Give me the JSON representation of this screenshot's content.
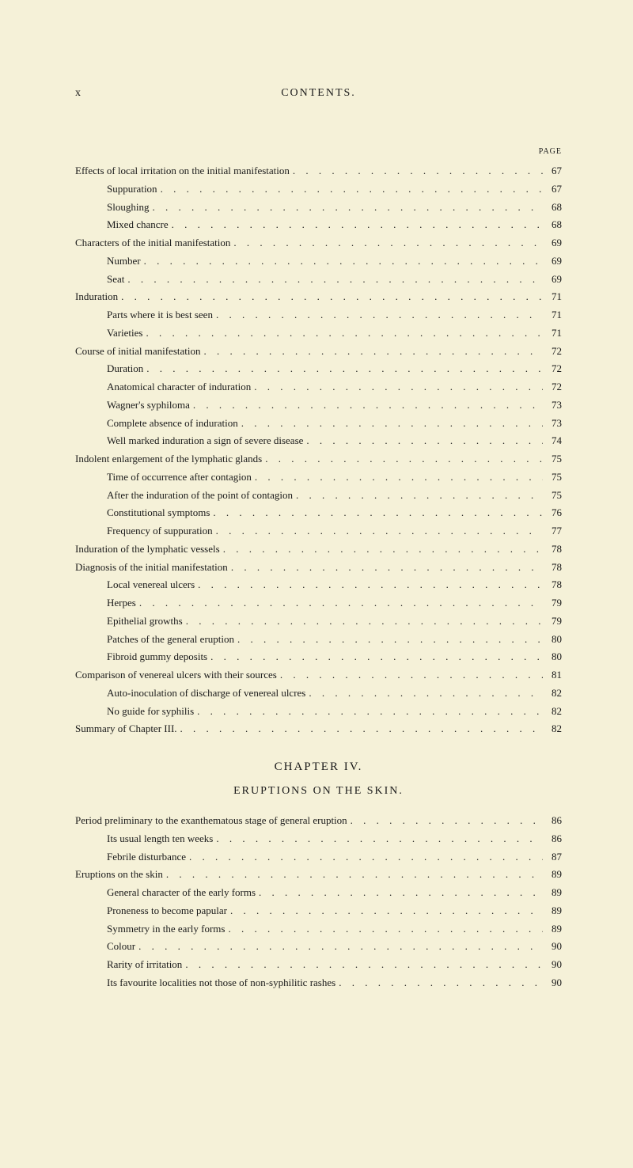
{
  "header": {
    "pageRoman": "x",
    "title": "CONTENTS."
  },
  "pageLabel": "PAGE",
  "entries1": [
    {
      "label": "Effects of local irritation on the initial manifestation",
      "page": "67",
      "indent": 0
    },
    {
      "label": "Suppuration",
      "page": "67",
      "indent": 1
    },
    {
      "label": "Sloughing",
      "page": "68",
      "indent": 1
    },
    {
      "label": "Mixed chancre",
      "page": "68",
      "indent": 1
    },
    {
      "label": "Characters of the initial manifestation",
      "page": "69",
      "indent": 0
    },
    {
      "label": "Number",
      "page": "69",
      "indent": 1
    },
    {
      "label": "Seat",
      "page": "69",
      "indent": 1
    },
    {
      "label": "Induration",
      "page": "71",
      "indent": 0
    },
    {
      "label": "Parts where it is best seen",
      "page": "71",
      "indent": 1
    },
    {
      "label": "Varieties",
      "page": "71",
      "indent": 1
    },
    {
      "label": "Course of initial manifestation",
      "page": "72",
      "indent": 0
    },
    {
      "label": "Duration",
      "page": "72",
      "indent": 1
    },
    {
      "label": "Anatomical character of induration",
      "page": "72",
      "indent": 1
    },
    {
      "label": "Wagner's syphiloma",
      "page": "73",
      "indent": 1
    },
    {
      "label": "Complete absence of induration",
      "page": "73",
      "indent": 1
    },
    {
      "label": "Well marked induration a sign of severe disease",
      "page": "74",
      "indent": 1
    },
    {
      "label": "Indolent enlargement of the lymphatic glands",
      "page": "75",
      "indent": 0
    },
    {
      "label": "Time of occurrence after contagion",
      "page": "75",
      "indent": 1
    },
    {
      "label": "After the induration of the point of contagion",
      "page": "75",
      "indent": 1
    },
    {
      "label": "Constitutional symptoms",
      "page": "76",
      "indent": 1
    },
    {
      "label": "Frequency of suppuration",
      "page": "77",
      "indent": 1
    },
    {
      "label": "Induration of the lymphatic vessels",
      "page": "78",
      "indent": 0
    },
    {
      "label": "Diagnosis of the initial manifestation",
      "page": "78",
      "indent": 0
    },
    {
      "label": "Local venereal ulcers",
      "page": "78",
      "indent": 1
    },
    {
      "label": "Herpes",
      "page": "79",
      "indent": 1
    },
    {
      "label": "Epithelial growths",
      "page": "79",
      "indent": 1
    },
    {
      "label": "Patches of the general eruption",
      "page": "80",
      "indent": 1
    },
    {
      "label": "Fibroid gummy deposits",
      "page": "80",
      "indent": 1
    },
    {
      "label": "Comparison of venereal ulcers with their sources",
      "page": "81",
      "indent": 0
    },
    {
      "label": "Auto-inoculation of discharge of venereal ulcres",
      "page": "82",
      "indent": 1
    },
    {
      "label": "No guide for syphilis",
      "page": "82",
      "indent": 1
    },
    {
      "label": "Summary of Chapter III.",
      "page": "82",
      "indent": 0
    }
  ],
  "chapter": {
    "title": "CHAPTER IV.",
    "subtitle": "ERUPTIONS ON THE SKIN."
  },
  "entries2": [
    {
      "label": "Period preliminary to the exanthematous stage of general eruption",
      "page": "86",
      "indent": 0
    },
    {
      "label": "Its usual length ten weeks",
      "page": "86",
      "indent": 1
    },
    {
      "label": "Febrile disturbance",
      "page": "87",
      "indent": 1
    },
    {
      "label": "Eruptions on the skin",
      "page": "89",
      "indent": 0
    },
    {
      "label": "General character of the early forms",
      "page": "89",
      "indent": 1
    },
    {
      "label": "Proneness to become papular",
      "page": "89",
      "indent": 1
    },
    {
      "label": "Symmetry in the early forms",
      "page": "89",
      "indent": 1
    },
    {
      "label": "Colour",
      "page": "90",
      "indent": 1
    },
    {
      "label": "Rarity of irritation",
      "page": "90",
      "indent": 1
    },
    {
      "label": "Its favourite localities not those of non-syphilitic rashes",
      "page": "90",
      "indent": 1
    }
  ],
  "dotsString": ". . . . . . . . . . . . . . . . . . . . . . . . . . . . . . . . . . . . . . . . . . . . ."
}
